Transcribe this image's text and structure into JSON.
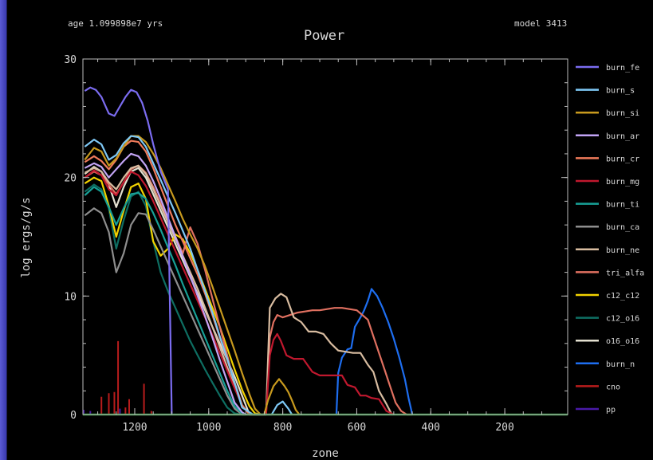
{
  "header": {
    "age_label": "age 1.099898e7 yrs",
    "model_label": "model 3413"
  },
  "chart_data": {
    "type": "line",
    "title": "Power",
    "xlabel": "zone",
    "ylabel": "log ergs/g/s",
    "xlim": [
      1340,
      30
    ],
    "ylim": [
      0,
      30
    ],
    "x_reversed": true,
    "x_ticks": [
      1200,
      1000,
      800,
      600,
      400,
      200
    ],
    "y_ticks": [
      0,
      10,
      20,
      30
    ],
    "grid": false,
    "legend_position": "right",
    "series": [
      {
        "name": "burn_fe",
        "color": "#7b6cf0",
        "x": [
          1335,
          1320,
          1305,
          1290,
          1270,
          1255,
          1240,
          1225,
          1210,
          1195,
          1180,
          1165,
          1150,
          1130,
          1110,
          1100
        ],
        "y": [
          27.3,
          27.6,
          27.4,
          26.8,
          25.4,
          25.2,
          26.0,
          26.8,
          27.4,
          27.2,
          26.3,
          24.8,
          22.8,
          20.5,
          19.0,
          0
        ]
      },
      {
        "name": "burn_s",
        "color": "#7ec8f5",
        "x": [
          1335,
          1310,
          1290,
          1270,
          1250,
          1230,
          1210,
          1190,
          1170,
          1150,
          1130,
          1110,
          1090,
          1070,
          1050,
          1030,
          1010,
          990,
          970,
          950,
          930,
          910,
          880,
          860,
          845,
          830,
          815,
          800,
          785,
          775
        ],
        "y": [
          22.6,
          23.2,
          22.8,
          21.5,
          21.9,
          22.9,
          23.5,
          23.4,
          22.6,
          21.2,
          19.8,
          18.4,
          17.0,
          15.5,
          14.0,
          12.2,
          10.4,
          8.6,
          6.6,
          4.7,
          2.7,
          0.6,
          0,
          0,
          0,
          0,
          0.8,
          1.1,
          0.5,
          0
        ]
      },
      {
        "name": "burn_si",
        "color": "#c89a1e",
        "x": [
          1335,
          1310,
          1290,
          1270,
          1250,
          1230,
          1210,
          1190,
          1170,
          1150,
          1130,
          1110,
          1090,
          1070,
          1050,
          1030,
          1010,
          990,
          970,
          950,
          930,
          910,
          890,
          875,
          860,
          850,
          840,
          825,
          810,
          795,
          785,
          775,
          765,
          755
        ],
        "y": [
          21.5,
          22.5,
          22.2,
          21.0,
          21.6,
          22.6,
          23.5,
          23.5,
          23.0,
          22.0,
          20.8,
          19.4,
          18.0,
          16.5,
          15.2,
          14.0,
          12.5,
          10.8,
          9.0,
          7.2,
          5.4,
          3.5,
          1.7,
          0.5,
          0,
          0,
          1.2,
          2.4,
          3.0,
          2.4,
          1.9,
          1.2,
          0.4,
          0
        ]
      },
      {
        "name": "burn_ar",
        "color": "#c2a4f5",
        "x": [
          1335,
          1310,
          1290,
          1270,
          1250,
          1230,
          1210,
          1190,
          1170,
          1150,
          1130,
          1110,
          1090,
          1070,
          1050,
          1030,
          1010,
          990,
          970,
          950,
          930,
          910,
          900
        ],
        "y": [
          20.8,
          21.2,
          20.9,
          20.0,
          20.7,
          21.4,
          22.0,
          21.8,
          21.0,
          19.7,
          18.2,
          16.6,
          15.0,
          13.3,
          11.7,
          10.0,
          8.3,
          6.5,
          4.6,
          2.8,
          1.0,
          0.2,
          0
        ]
      },
      {
        "name": "burn_cr",
        "color": "#ef7a5a",
        "x": [
          1335,
          1310,
          1290,
          1270,
          1250,
          1230,
          1210,
          1190,
          1170,
          1150,
          1130,
          1110,
          1090,
          1070,
          1050,
          1030,
          1010,
          990,
          970,
          950,
          930,
          910,
          890
        ],
        "y": [
          21.3,
          21.8,
          21.4,
          20.7,
          21.5,
          22.6,
          23.1,
          23.0,
          22.2,
          20.8,
          19.2,
          17.6,
          16.0,
          14.6,
          13.2,
          11.8,
          10.2,
          8.4,
          6.5,
          4.6,
          2.7,
          0.8,
          0
        ]
      },
      {
        "name": "burn_mg",
        "color": "#c0182e",
        "x": [
          1335,
          1310,
          1290,
          1270,
          1250,
          1230,
          1210,
          1190,
          1170,
          1150,
          1130,
          1110,
          1090,
          1070,
          1050,
          1030,
          1010,
          990,
          970,
          950,
          930,
          910,
          890,
          870,
          855,
          845,
          835,
          825,
          815,
          805,
          790,
          770,
          745,
          720,
          700,
          680,
          660,
          640,
          625,
          605,
          590,
          575,
          560,
          540,
          520,
          500
        ],
        "y": [
          20.0,
          20.6,
          20.2,
          19.0,
          18.5,
          19.6,
          20.5,
          20.2,
          19.3,
          18.0,
          16.6,
          15.2,
          13.8,
          12.4,
          11.0,
          9.6,
          8.2,
          6.7,
          5.2,
          3.7,
          2.2,
          0.8,
          0,
          0,
          0,
          0,
          5.0,
          6.3,
          6.8,
          6.2,
          5.0,
          4.7,
          4.7,
          3.6,
          3.3,
          3.3,
          3.3,
          3.3,
          2.5,
          2.3,
          1.6,
          1.6,
          1.4,
          1.3,
          0.3,
          0
        ]
      },
      {
        "name": "burn_ti",
        "color": "#17a096",
        "x": [
          1335,
          1310,
          1290,
          1270,
          1250,
          1230,
          1210,
          1190,
          1170,
          1150,
          1130,
          1110,
          1090,
          1070,
          1050,
          1030,
          1010,
          990,
          970,
          950,
          930,
          910,
          900
        ],
        "y": [
          18.5,
          19.2,
          18.8,
          17.5,
          16.0,
          17.4,
          18.6,
          18.7,
          18.2,
          17.0,
          15.6,
          14.1,
          12.6,
          11.0,
          9.5,
          8.0,
          6.5,
          5.0,
          3.5,
          2.0,
          0.7,
          0.1,
          0
        ]
      },
      {
        "name": "burn_ca",
        "color": "#8e8e8e",
        "x": [
          1335,
          1310,
          1290,
          1270,
          1250,
          1230,
          1210,
          1190,
          1170,
          1150,
          1130,
          1110,
          1090,
          1070,
          1050,
          1030,
          1010,
          990,
          970,
          950,
          930,
          910,
          890,
          880
        ],
        "y": [
          16.8,
          17.4,
          17.0,
          15.4,
          12.0,
          13.6,
          16.0,
          17.0,
          16.9,
          15.6,
          14.2,
          12.8,
          11.4,
          10.0,
          8.6,
          7.2,
          5.8,
          4.4,
          3.0,
          1.6,
          0.5,
          0,
          0,
          0
        ]
      },
      {
        "name": "burn_ne",
        "color": "#d8bca0",
        "x": [
          1335,
          1310,
          1290,
          1270,
          1250,
          1230,
          1210,
          1190,
          1170,
          1150,
          1130,
          1110,
          1090,
          1070,
          1050,
          1030,
          1010,
          990,
          970,
          950,
          930,
          910,
          890,
          870,
          855,
          845,
          835,
          820,
          805,
          790,
          770,
          750,
          730,
          710,
          690,
          670,
          650,
          630,
          610,
          590,
          570,
          555,
          540,
          520,
          505
        ],
        "y": [
          20.4,
          20.8,
          20.5,
          19.6,
          19.0,
          20.0,
          20.8,
          21.0,
          20.3,
          19.0,
          17.6,
          16.2,
          14.8,
          13.4,
          12.0,
          10.6,
          9.0,
          7.4,
          5.7,
          4.0,
          2.3,
          0.8,
          0,
          0,
          0,
          0,
          9.0,
          9.8,
          10.2,
          9.9,
          8.2,
          7.8,
          7.0,
          7.0,
          6.8,
          6.0,
          5.4,
          5.3,
          5.2,
          5.2,
          4.2,
          3.6,
          2.0,
          0.9,
          0
        ]
      },
      {
        "name": "tri_alfa",
        "color": "#e07060",
        "x": [
          1335,
          1310,
          1290,
          1270,
          1250,
          1230,
          1210,
          1190,
          1170,
          1150,
          1130,
          1110,
          1090,
          1070,
          1050,
          1030,
          1010,
          990,
          970,
          950,
          930,
          910,
          890,
          870,
          855,
          845,
          835,
          825,
          815,
          800,
          780,
          760,
          740,
          720,
          700,
          680,
          660,
          640,
          620,
          600,
          585,
          570,
          555,
          540,
          525,
          510,
          495,
          480,
          465,
          450
        ],
        "y": [
          20.0,
          20.5,
          20.2,
          19.4,
          18.6,
          19.6,
          20.7,
          21.0,
          20.4,
          19.2,
          17.8,
          16.4,
          15.0,
          13.6,
          15.8,
          14.4,
          12.2,
          9.8,
          7.4,
          5.0,
          2.6,
          0.8,
          0,
          0,
          0,
          0,
          6.5,
          7.8,
          8.4,
          8.2,
          8.4,
          8.6,
          8.7,
          8.8,
          8.8,
          8.9,
          9.0,
          9.0,
          8.9,
          8.8,
          8.4,
          8.0,
          6.6,
          5.2,
          3.8,
          2.4,
          1.0,
          0.3,
          0,
          0
        ]
      },
      {
        "name": "c12_c12",
        "color": "#f2d200",
        "x": [
          1335,
          1310,
          1290,
          1270,
          1250,
          1230,
          1210,
          1190,
          1170,
          1150,
          1130,
          1110,
          1090,
          1070,
          1050,
          1030,
          1010,
          990,
          970,
          950,
          930,
          910,
          890,
          875,
          860
        ],
        "y": [
          19.5,
          20.0,
          19.7,
          17.6,
          15.0,
          17.2,
          19.2,
          19.5,
          18.2,
          14.6,
          13.4,
          14.0,
          15.2,
          14.8,
          13.6,
          12.2,
          10.6,
          9.0,
          7.4,
          5.6,
          3.8,
          2.1,
          0.7,
          0.1,
          0
        ]
      },
      {
        "name": "c12_o16",
        "color": "#0e6e62",
        "x": [
          1335,
          1310,
          1290,
          1270,
          1250,
          1230,
          1210,
          1190,
          1170,
          1150,
          1130,
          1110,
          1090,
          1070,
          1050,
          1030,
          1010,
          990,
          970,
          950,
          930,
          910,
          900
        ],
        "y": [
          18.8,
          19.4,
          19.0,
          17.4,
          14.0,
          16.4,
          18.4,
          18.8,
          17.6,
          14.6,
          12.0,
          10.4,
          9.0,
          7.6,
          6.2,
          5.0,
          3.8,
          2.7,
          1.6,
          0.6,
          0.1,
          0,
          0
        ]
      },
      {
        "name": "o16_o16",
        "color": "#e4e0d0",
        "x": [
          1335,
          1310,
          1290,
          1270,
          1250,
          1230,
          1210,
          1190,
          1170,
          1150,
          1130,
          1110,
          1090,
          1070,
          1050,
          1030,
          1010,
          990,
          970,
          950,
          930,
          910,
          890
        ],
        "y": [
          20.3,
          20.9,
          20.5,
          19.4,
          17.5,
          19.2,
          20.5,
          20.8,
          20.0,
          18.6,
          17.2,
          15.8,
          14.4,
          13.0,
          11.6,
          10.2,
          8.8,
          7.4,
          6.0,
          4.6,
          3.2,
          1.6,
          0
        ]
      },
      {
        "name": "burn_n",
        "color": "#1e6ef0",
        "x": [
          655,
          650,
          640,
          625,
          615,
          605,
          590,
          580,
          570,
          560,
          545,
          530,
          515,
          500,
          485,
          470,
          460,
          450
        ],
        "y": [
          0,
          3.5,
          4.8,
          5.5,
          5.6,
          7.4,
          8.2,
          8.8,
          9.6,
          10.6,
          10.0,
          9.0,
          7.8,
          6.4,
          4.8,
          3.0,
          1.4,
          0
        ]
      },
      {
        "name": "cno",
        "color": "#b81c1c",
        "x": [],
        "y": []
      },
      {
        "name": "pp",
        "color": "#4a1aa8",
        "x": [],
        "y": []
      }
    ],
    "baseline_color": "#2e8a3c",
    "spikes": {
      "cno": {
        "color": "#b81c1c",
        "x": [
          1290,
          1270,
          1255,
          1245,
          1225,
          1215,
          1175,
          1155
        ],
        "y": [
          1.5,
          1.8,
          1.9,
          6.2,
          0.6,
          1.3,
          2.6,
          0.3
        ]
      },
      "pp": {
        "color": "#4a1aa8",
        "x": [
          1338,
          1320,
          1240
        ],
        "y": [
          0.4,
          0.3,
          0.5
        ]
      }
    }
  }
}
